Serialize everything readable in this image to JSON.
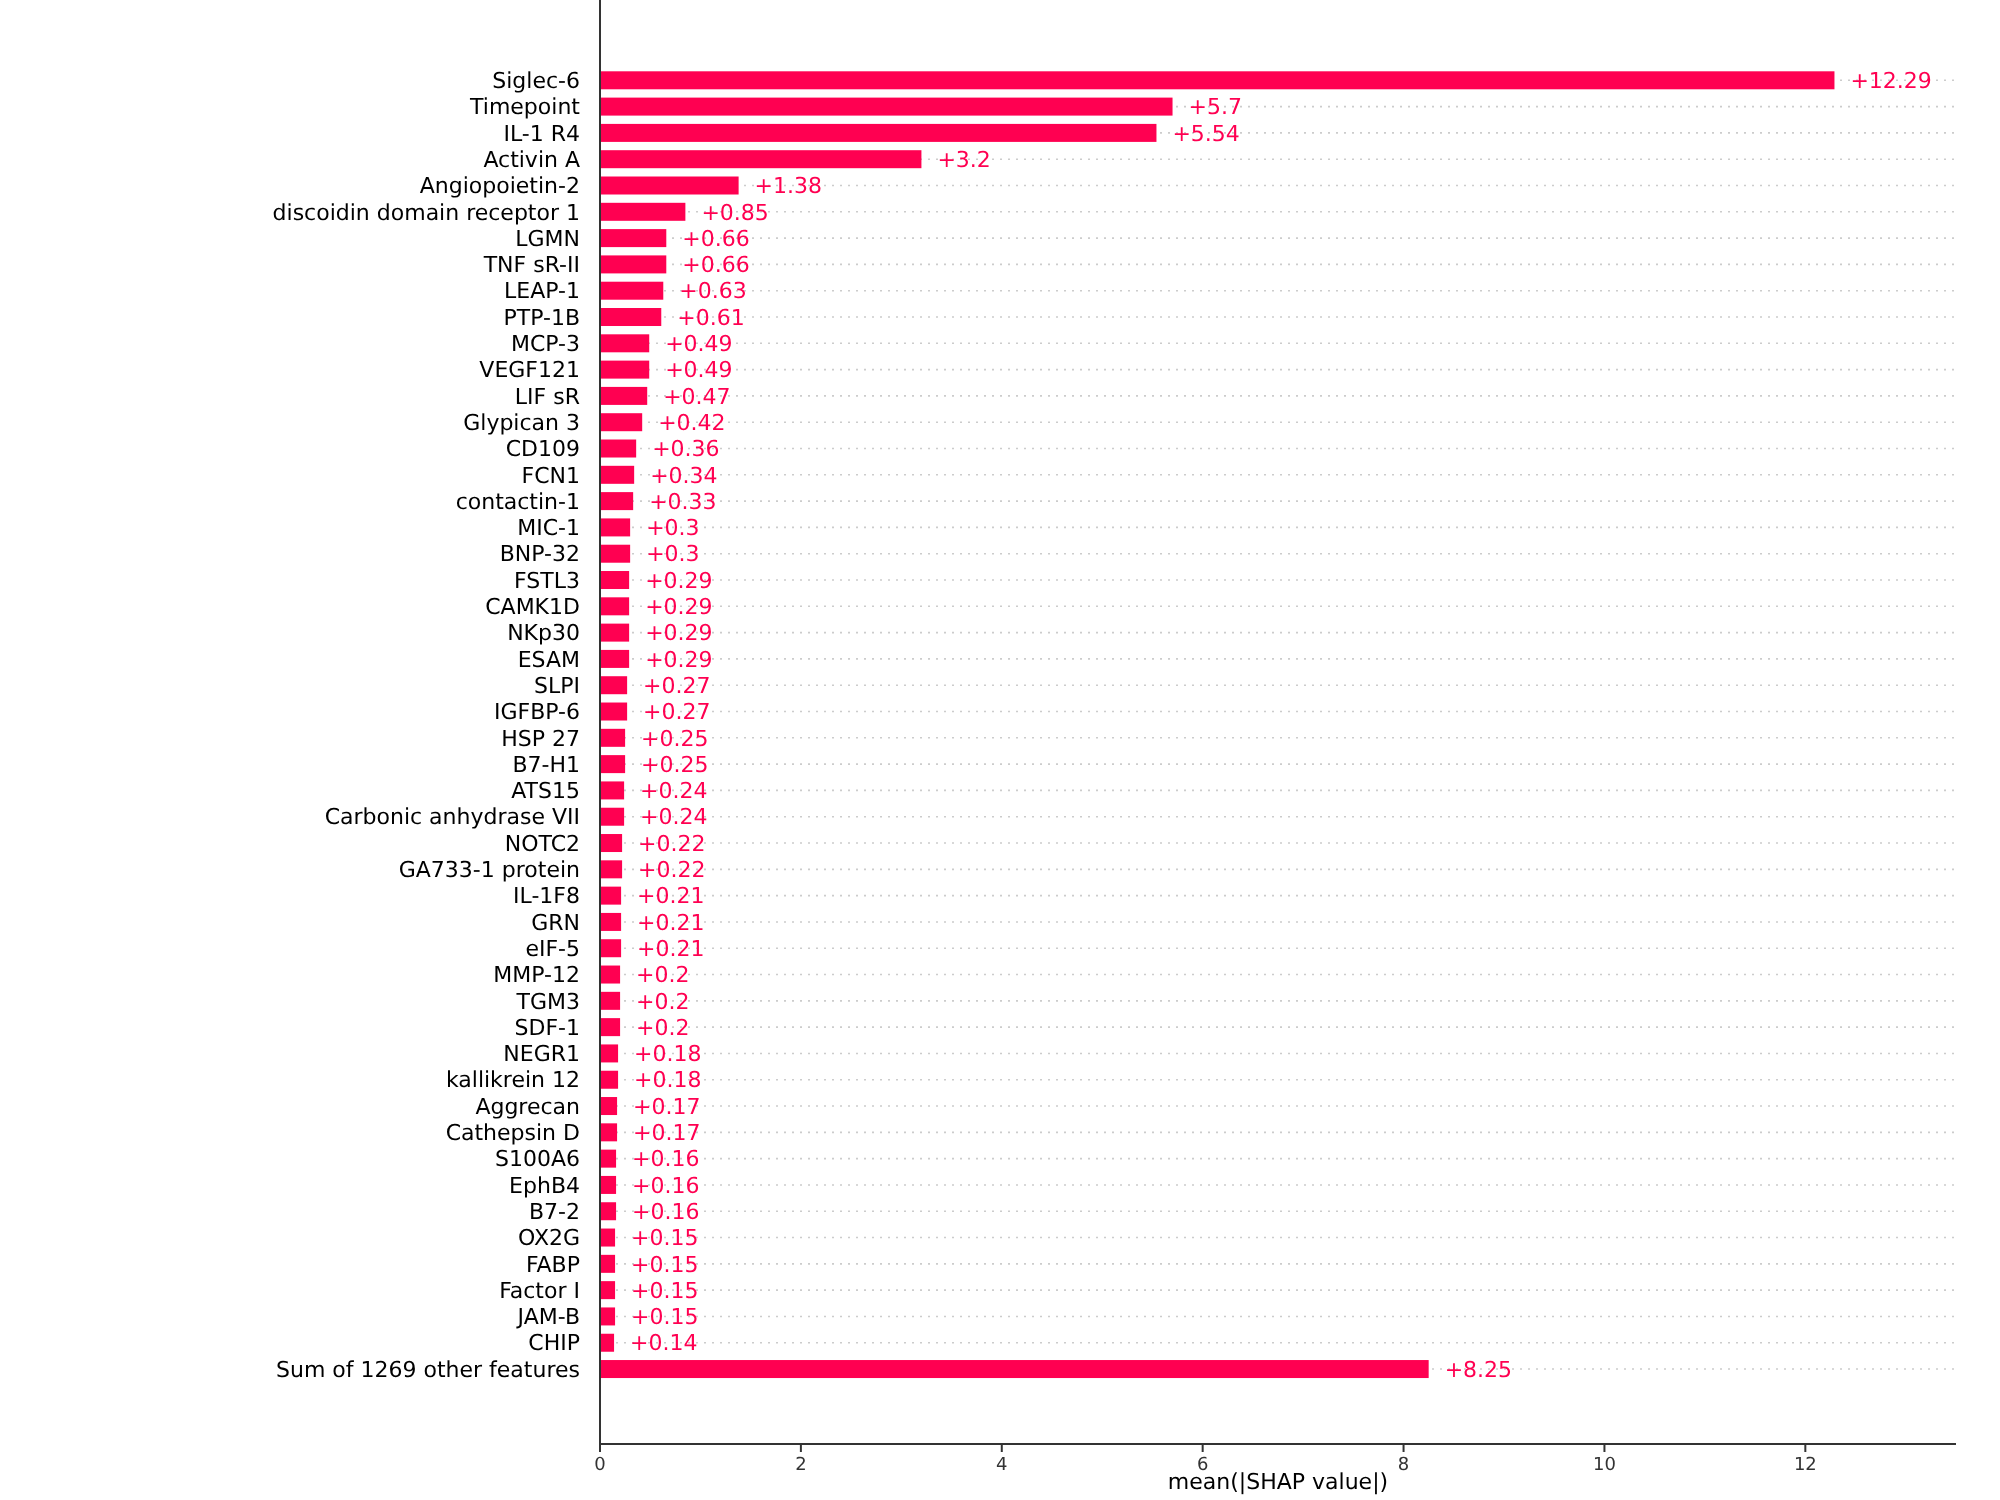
{
  "chart_data": {
    "type": "bar",
    "orientation": "horizontal",
    "xlabel": "mean(|SHAP value|)",
    "categories": [
      "Siglec-6",
      "Timepoint",
      "IL-1 R4",
      "Activin A",
      "Angiopoietin-2",
      "discoidin domain receptor 1",
      "LGMN",
      "TNF sR-II",
      "LEAP-1",
      "PTP-1B",
      "MCP-3",
      "VEGF121",
      "LIF sR",
      "Glypican 3",
      "CD109",
      "FCN1",
      "contactin-1",
      "MIC-1",
      "BNP-32",
      "FSTL3",
      "CAMK1D",
      "NKp30",
      "ESAM",
      "SLPI",
      "IGFBP-6",
      "HSP 27",
      "B7-H1",
      "ATS15",
      "Carbonic anhydrase VII",
      "NOTC2",
      "GA733-1 protein",
      "IL-1F8",
      "GRN",
      "eIF-5",
      "MMP-12",
      "TGM3",
      "SDF-1",
      "NEGR1",
      "kallikrein 12",
      "Aggrecan",
      "Cathepsin D",
      "S100A6",
      "EphB4",
      "B7-2",
      "OX2G",
      "FABP",
      "Factor I",
      "JAM-B",
      "CHIP",
      "Sum of 1269 other features"
    ],
    "values": [
      12.29,
      5.7,
      5.54,
      3.2,
      1.38,
      0.85,
      0.66,
      0.66,
      0.63,
      0.61,
      0.49,
      0.49,
      0.47,
      0.42,
      0.36,
      0.34,
      0.33,
      0.3,
      0.3,
      0.29,
      0.29,
      0.29,
      0.29,
      0.27,
      0.27,
      0.25,
      0.25,
      0.24,
      0.24,
      0.22,
      0.22,
      0.21,
      0.21,
      0.21,
      0.2,
      0.2,
      0.2,
      0.18,
      0.18,
      0.17,
      0.17,
      0.16,
      0.16,
      0.16,
      0.15,
      0.15,
      0.15,
      0.15,
      0.14,
      8.25
    ],
    "value_labels": [
      "+12.29",
      "+5.7",
      "+5.54",
      "+3.2",
      "+1.38",
      "+0.85",
      "+0.66",
      "+0.66",
      "+0.63",
      "+0.61",
      "+0.49",
      "+0.49",
      "+0.47",
      "+0.42",
      "+0.36",
      "+0.34",
      "+0.33",
      "+0.3",
      "+0.3",
      "+0.29",
      "+0.29",
      "+0.29",
      "+0.29",
      "+0.27",
      "+0.27",
      "+0.25",
      "+0.25",
      "+0.24",
      "+0.24",
      "+0.22",
      "+0.22",
      "+0.21",
      "+0.21",
      "+0.21",
      "+0.2",
      "+0.2",
      "+0.2",
      "+0.18",
      "+0.18",
      "+0.17",
      "+0.17",
      "+0.16",
      "+0.16",
      "+0.16",
      "+0.15",
      "+0.15",
      "+0.15",
      "+0.15",
      "+0.14",
      "+8.25"
    ],
    "color": "#ff0051",
    "xlim": [
      0,
      13.5
    ],
    "xticks": [
      0,
      2,
      4,
      6,
      8,
      10,
      12
    ],
    "grid": "y"
  }
}
